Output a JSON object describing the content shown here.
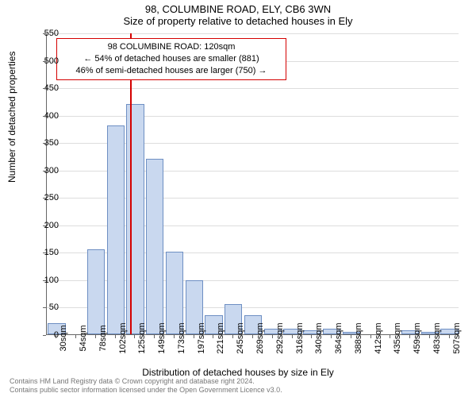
{
  "title_main": "98, COLUMBINE ROAD, ELY, CB6 3WN",
  "title_sub": "Size of property relative to detached houses in Ely",
  "y_axis_label": "Number of detached properties",
  "x_axis_label": "Distribution of detached houses by size in Ely",
  "chart": {
    "type": "histogram",
    "ylim": [
      0,
      550
    ],
    "ytick_step": 50,
    "background_color": "#ffffff",
    "grid_color": "#dddddd",
    "axis_color": "#666666",
    "bar_fill": "#c9d8ef",
    "bar_border": "#6e8fc3",
    "bar_border_width": 1,
    "label_fontsize": 11,
    "axis_label_fontsize": 12,
    "marker": {
      "x": 120,
      "line_color": "#d40000",
      "line_width": 2
    },
    "categories": [
      "30sqm",
      "54sqm",
      "78sqm",
      "102sqm",
      "125sqm",
      "149sqm",
      "173sqm",
      "197sqm",
      "221sqm",
      "245sqm",
      "269sqm",
      "292sqm",
      "316sqm",
      "340sqm",
      "364sqm",
      "388sqm",
      "412sqm",
      "435sqm",
      "459sqm",
      "483sqm",
      "507sqm"
    ],
    "values": [
      20,
      0,
      155,
      380,
      420,
      320,
      150,
      98,
      35,
      55,
      35,
      10,
      10,
      7,
      10,
      5,
      0,
      0,
      7,
      4,
      10
    ]
  },
  "annotation": {
    "line1": "98 COLUMBINE ROAD: 120sqm",
    "line2": "← 54% of detached houses are smaller (881)",
    "line3": "46% of semi-detached houses are larger (750) →",
    "border_color": "#d40000",
    "border_width": 1,
    "background": "#ffffff"
  },
  "footer": {
    "line1": "Contains HM Land Registry data © Crown copyright and database right 2024.",
    "line2": "Contains public sector information licensed under the Open Government Licence v3.0."
  }
}
